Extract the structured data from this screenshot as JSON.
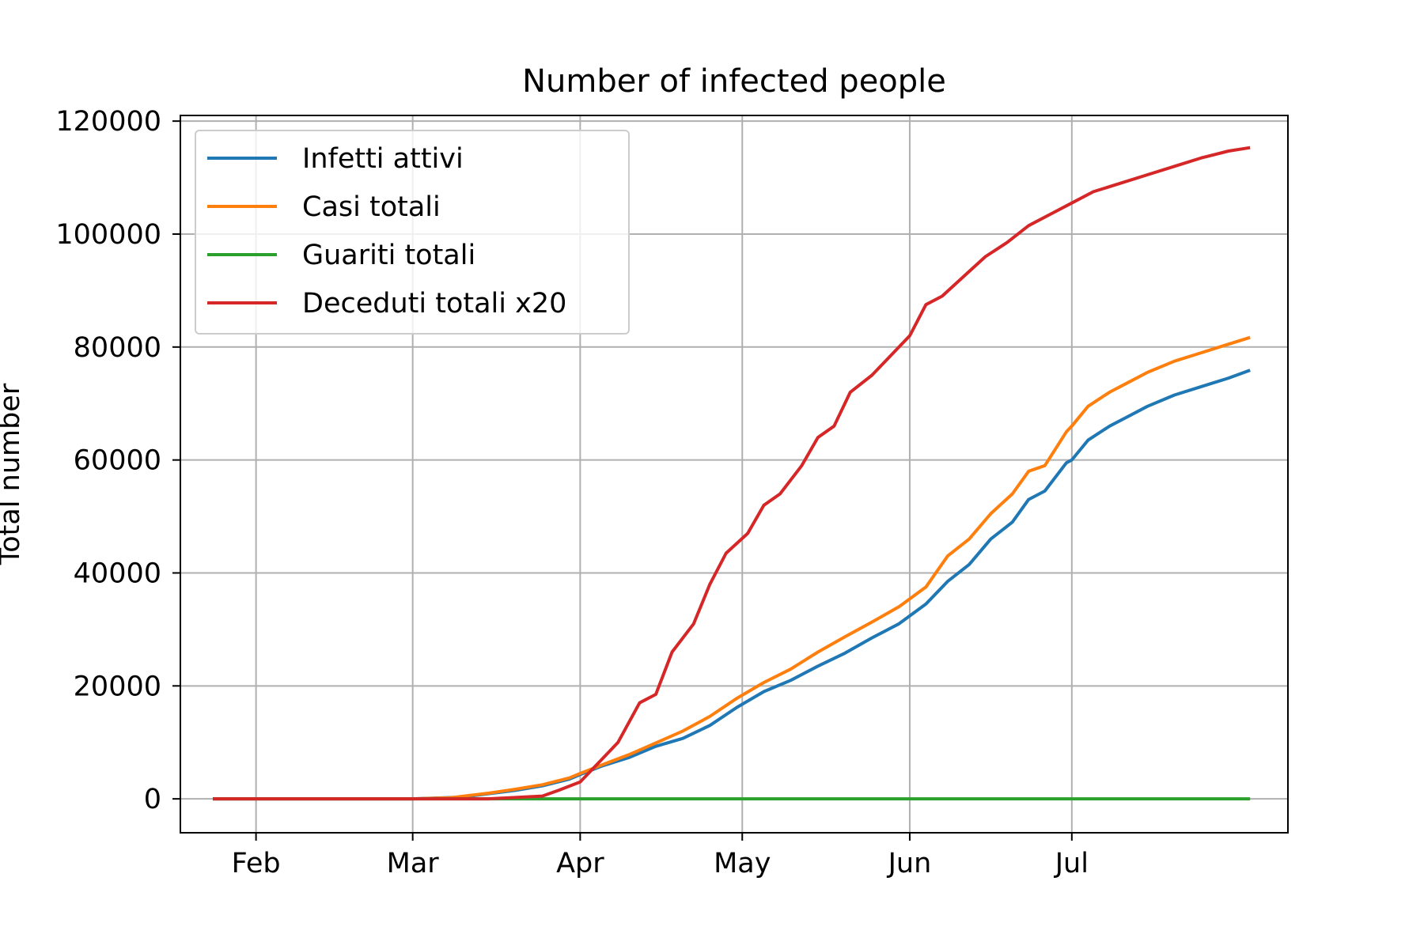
{
  "chart_data": {
    "type": "line",
    "title": "Number of infected people",
    "xlabel": "",
    "ylabel": "Total number",
    "x_type": "date",
    "xlim": [
      "2020-01-18",
      "2020-08-10"
    ],
    "ylim": [
      -6000,
      121000
    ],
    "grid": true,
    "legend_position": "upper-left",
    "x_ticks": [
      {
        "date": "2020-02-01",
        "label": "Feb"
      },
      {
        "date": "2020-03-01",
        "label": "Mar"
      },
      {
        "date": "2020-04-01",
        "label": "Apr"
      },
      {
        "date": "2020-05-01",
        "label": "May"
      },
      {
        "date": "2020-06-01",
        "label": "Jun"
      },
      {
        "date": "2020-07-01",
        "label": "Jul"
      }
    ],
    "y_ticks": [
      {
        "value": 0,
        "label": "0"
      },
      {
        "value": 20000,
        "label": "20000"
      },
      {
        "value": 40000,
        "label": "40000"
      },
      {
        "value": 60000,
        "label": "60000"
      },
      {
        "value": 80000,
        "label": "80000"
      },
      {
        "value": 100000,
        "label": "100000"
      },
      {
        "value": 120000,
        "label": "120000"
      }
    ],
    "series": [
      {
        "name": "Infetti attivi",
        "color": "#1f77b4",
        "points": [
          [
            "2020-01-24",
            0
          ],
          [
            "2020-03-01",
            0
          ],
          [
            "2020-03-10",
            300
          ],
          [
            "2020-03-15",
            900
          ],
          [
            "2020-03-20",
            1500
          ],
          [
            "2020-03-25",
            2300
          ],
          [
            "2020-03-30",
            3500
          ],
          [
            "2020-04-01",
            4300
          ],
          [
            "2020-04-05",
            5800
          ],
          [
            "2020-04-10",
            7300
          ],
          [
            "2020-04-15",
            9300
          ],
          [
            "2020-04-20",
            10700
          ],
          [
            "2020-04-25",
            13000
          ],
          [
            "2020-04-30",
            16200
          ],
          [
            "2020-05-05",
            19000
          ],
          [
            "2020-05-10",
            21000
          ],
          [
            "2020-05-15",
            23500
          ],
          [
            "2020-05-20",
            25800
          ],
          [
            "2020-05-25",
            28500
          ],
          [
            "2020-05-30",
            31000
          ],
          [
            "2020-06-04",
            34500
          ],
          [
            "2020-06-08",
            38500
          ],
          [
            "2020-06-12",
            41500
          ],
          [
            "2020-06-16",
            46000
          ],
          [
            "2020-06-20",
            49000
          ],
          [
            "2020-06-23",
            53000
          ],
          [
            "2020-06-26",
            54500
          ],
          [
            "2020-06-30",
            59500
          ],
          [
            "2020-07-01",
            60000
          ],
          [
            "2020-07-04",
            63500
          ],
          [
            "2020-07-08",
            66000
          ],
          [
            "2020-07-11",
            67500
          ],
          [
            "2020-07-15",
            69500
          ],
          [
            "2020-07-20",
            71500
          ],
          [
            "2020-07-25",
            73000
          ],
          [
            "2020-07-30",
            74500
          ],
          [
            "2020-08-03",
            75900
          ]
        ]
      },
      {
        "name": "Casi totali",
        "color": "#ff7f0e",
        "points": [
          [
            "2020-01-24",
            0
          ],
          [
            "2020-03-01",
            0
          ],
          [
            "2020-03-08",
            200
          ],
          [
            "2020-03-15",
            1000
          ],
          [
            "2020-03-20",
            1700
          ],
          [
            "2020-03-25",
            2500
          ],
          [
            "2020-03-30",
            3700
          ],
          [
            "2020-04-01",
            4500
          ],
          [
            "2020-04-05",
            6000
          ],
          [
            "2020-04-10",
            7800
          ],
          [
            "2020-04-15",
            9900
          ],
          [
            "2020-04-20",
            12000
          ],
          [
            "2020-04-25",
            14600
          ],
          [
            "2020-04-30",
            17800
          ],
          [
            "2020-05-05",
            20600
          ],
          [
            "2020-05-10",
            23000
          ],
          [
            "2020-05-15",
            26000
          ],
          [
            "2020-05-20",
            28700
          ],
          [
            "2020-05-25",
            31300
          ],
          [
            "2020-05-30",
            34000
          ],
          [
            "2020-06-04",
            37500
          ],
          [
            "2020-06-08",
            43000
          ],
          [
            "2020-06-12",
            46000
          ],
          [
            "2020-06-16",
            50500
          ],
          [
            "2020-06-20",
            54000
          ],
          [
            "2020-06-23",
            58000
          ],
          [
            "2020-06-26",
            59000
          ],
          [
            "2020-06-30",
            65000
          ],
          [
            "2020-07-01",
            66000
          ],
          [
            "2020-07-04",
            69500
          ],
          [
            "2020-07-08",
            72000
          ],
          [
            "2020-07-11",
            73500
          ],
          [
            "2020-07-15",
            75500
          ],
          [
            "2020-07-20",
            77500
          ],
          [
            "2020-07-25",
            79000
          ],
          [
            "2020-07-30",
            80500
          ],
          [
            "2020-08-03",
            81700
          ]
        ]
      },
      {
        "name": "Guariti totali",
        "color": "#2ca02c",
        "points": [
          [
            "2020-01-24",
            0
          ],
          [
            "2020-08-03",
            0
          ]
        ]
      },
      {
        "name": "Deceduti totali x20",
        "color": "#d62728",
        "points": [
          [
            "2020-01-24",
            0
          ],
          [
            "2020-03-15",
            0
          ],
          [
            "2020-03-25",
            500
          ],
          [
            "2020-03-28",
            1500
          ],
          [
            "2020-04-01",
            3000
          ],
          [
            "2020-04-05",
            7000
          ],
          [
            "2020-04-08",
            10000
          ],
          [
            "2020-04-12",
            17000
          ],
          [
            "2020-04-15",
            18500
          ],
          [
            "2020-04-18",
            26000
          ],
          [
            "2020-04-22",
            31000
          ],
          [
            "2020-04-25",
            38000
          ],
          [
            "2020-04-28",
            43500
          ],
          [
            "2020-05-02",
            47000
          ],
          [
            "2020-05-05",
            52000
          ],
          [
            "2020-05-08",
            54000
          ],
          [
            "2020-05-12",
            59000
          ],
          [
            "2020-05-15",
            64000
          ],
          [
            "2020-05-18",
            66000
          ],
          [
            "2020-05-21",
            72000
          ],
          [
            "2020-05-25",
            75000
          ],
          [
            "2020-05-28",
            78000
          ],
          [
            "2020-06-01",
            82000
          ],
          [
            "2020-06-04",
            87500
          ],
          [
            "2020-06-07",
            89000
          ],
          [
            "2020-06-11",
            92500
          ],
          [
            "2020-06-15",
            96000
          ],
          [
            "2020-06-19",
            98500
          ],
          [
            "2020-06-23",
            101500
          ],
          [
            "2020-06-27",
            103500
          ],
          [
            "2020-07-01",
            105500
          ],
          [
            "2020-07-05",
            107500
          ],
          [
            "2020-07-10",
            109000
          ],
          [
            "2020-07-15",
            110500
          ],
          [
            "2020-07-20",
            112000
          ],
          [
            "2020-07-25",
            113500
          ],
          [
            "2020-07-30",
            114700
          ],
          [
            "2020-08-03",
            115300
          ]
        ]
      }
    ]
  }
}
